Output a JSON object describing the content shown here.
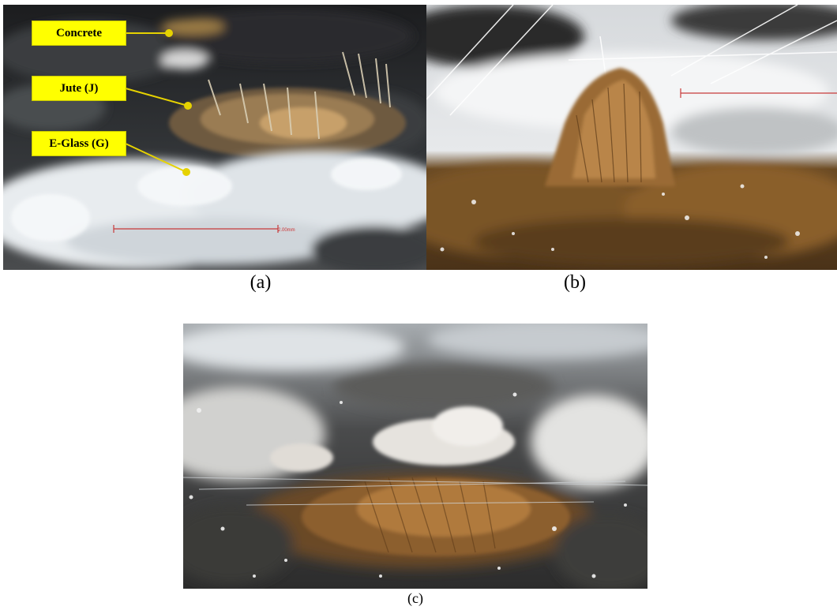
{
  "figure": {
    "panels": [
      {
        "id": "a",
        "caption": "(a)",
        "labels": [
          "Concrete",
          "Jute (J)",
          "E-Glass (G)"
        ],
        "scale_bar_text": "2.00mm"
      },
      {
        "id": "b",
        "caption": "(b)"
      },
      {
        "id": "c",
        "caption": "(c)"
      }
    ]
  },
  "colors": {
    "callout_fill": "#ffff00",
    "leader_line": "#e6d200",
    "scale_bar": "#c83a3a",
    "jute_brown": "#8a5a2b",
    "glass_white": "#f2f4f6",
    "concrete_dark": "#2a2c2e"
  }
}
